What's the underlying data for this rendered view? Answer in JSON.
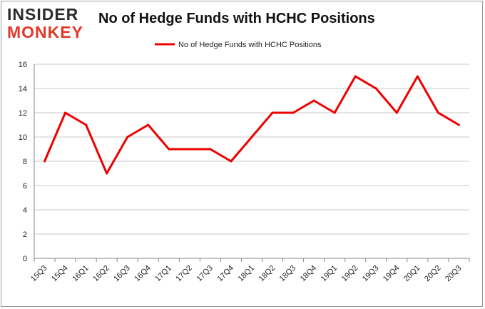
{
  "header": {
    "logo_line1": "INSIDER",
    "logo_line2": "MONKEY",
    "title": "No of Hedge Funds with HCHC Positions"
  },
  "colors": {
    "series": "#ee0000",
    "grid": "#c8c8c8",
    "axis": "#888888"
  },
  "chart_data": {
    "type": "line",
    "title": "No of Hedge Funds with HCHC Positions",
    "xlabel": "",
    "ylabel": "",
    "ylim": [
      0,
      16
    ],
    "yticks": [
      0,
      2,
      4,
      6,
      8,
      10,
      12,
      14,
      16
    ],
    "grid": true,
    "legend_position": "top-center",
    "categories": [
      "15Q3",
      "15Q4",
      "16Q1",
      "16Q2",
      "16Q3",
      "16Q4",
      "17Q1",
      "17Q2",
      "17Q3",
      "17Q4",
      "18Q1",
      "18Q2",
      "18Q3",
      "18Q4",
      "19Q1",
      "19Q2",
      "19Q3",
      "19Q4",
      "20Q1",
      "20Q2",
      "20Q3"
    ],
    "series": [
      {
        "name": "No of Hedge Funds with HCHC Positions",
        "values": [
          8,
          12,
          11,
          7,
          10,
          11,
          9,
          9,
          9,
          8,
          10,
          12,
          12,
          13,
          12,
          15,
          14,
          12,
          15,
          12,
          11
        ]
      }
    ]
  }
}
